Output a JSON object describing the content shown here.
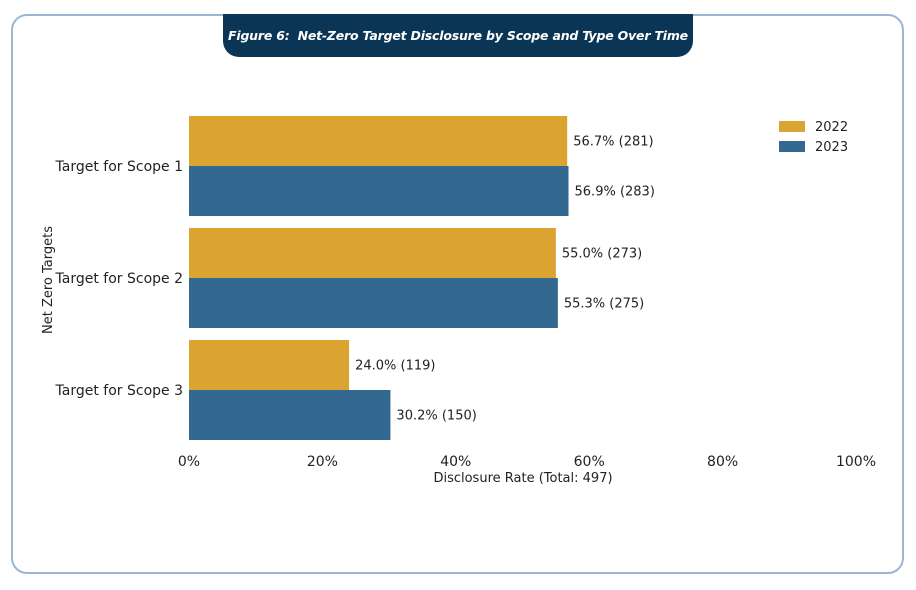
{
  "header": {
    "figure_label": "Figure 6:",
    "title": "Net-Zero Target Disclosure by Scope and Type Over Time"
  },
  "chart_data": {
    "type": "bar",
    "orientation": "horizontal",
    "title": "Net-Zero Target Disclosure by Scope and Type Over Time",
    "xlabel": "Disclosure Rate (Total: 497)",
    "ylabel": "Net Zero Targets",
    "xlim": [
      0,
      100
    ],
    "x_ticks": [
      "0%",
      "20%",
      "40%",
      "60%",
      "80%",
      "100%"
    ],
    "x_tick_values": [
      0,
      20,
      40,
      60,
      80,
      100
    ],
    "categories": [
      "Target for Scope 1",
      "Target for Scope 2",
      "Target for Scope 3"
    ],
    "series": [
      {
        "name": "2022",
        "color": "#dba330",
        "values": [
          56.7,
          55.0,
          24.0
        ],
        "labels": [
          "56.7% (281)",
          "55.0% (273)",
          "24.0% (119)"
        ]
      },
      {
        "name": "2023",
        "color": "#336891",
        "values": [
          56.9,
          55.3,
          30.2
        ],
        "labels": [
          "56.9% (283)",
          "55.3% (275)",
          "30.2% (150)"
        ]
      }
    ],
    "legend_position": "top-right",
    "grid": false
  }
}
